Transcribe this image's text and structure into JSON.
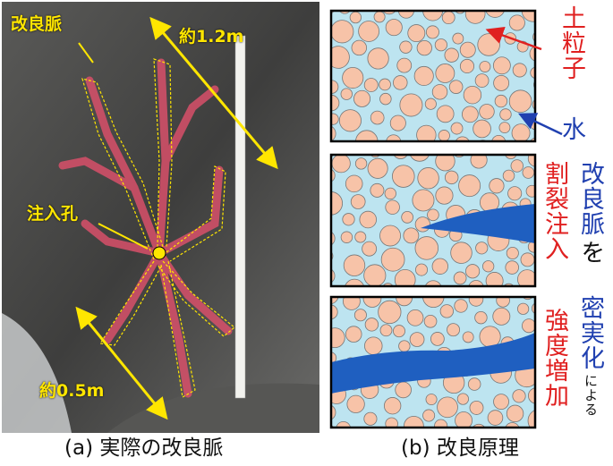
{
  "panel_a": {
    "labels": {
      "vein": "改良脈",
      "length_long": "約1.2m",
      "hole": "注入孔",
      "length_short": "約0.5m"
    },
    "caption": "(a) 実際の改良脈"
  },
  "panel_b": {
    "caption": "(b) 改良原理",
    "top": {
      "particle": "土粒子",
      "water": "水"
    },
    "middle": {
      "red": "割裂注入",
      "blue": "改良脈",
      "suffix": "を"
    },
    "bottom": {
      "blue": "密実化",
      "small": "による",
      "red": "強度増加"
    }
  }
}
